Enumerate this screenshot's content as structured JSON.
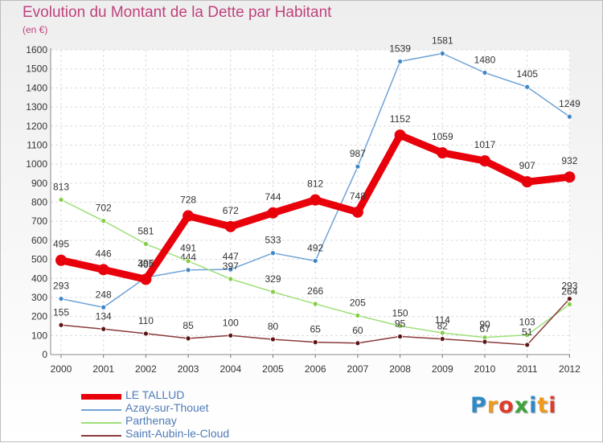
{
  "chart_data": {
    "type": "line",
    "title": "Evolution du Montant de la Dette par Habitant",
    "subtitle": "(en €)",
    "categories": [
      "2000",
      "2001",
      "2002",
      "2003",
      "2004",
      "2005",
      "2006",
      "2007",
      "2008",
      "2009",
      "2010",
      "2011",
      "2012"
    ],
    "ylim": [
      0,
      1600
    ],
    "yticks": [
      0,
      100,
      200,
      300,
      400,
      500,
      600,
      700,
      800,
      900,
      1000,
      1100,
      1200,
      1300,
      1400,
      1500,
      1600
    ],
    "grid": true,
    "legend_position": "bottom-left",
    "series": [
      {
        "name": "LE TALLUD",
        "color": "#e8000b",
        "emphasis": true,
        "values": [
          495,
          446,
          395,
          728,
          672,
          744,
          812,
          748,
          1152,
          1059,
          1017,
          907,
          932
        ]
      },
      {
        "name": "Azay-sur-Thouet",
        "color": "#6fa3d5",
        "point_color": "#3f86c8",
        "values": [
          293,
          248,
          405,
          444,
          447,
          533,
          492,
          987,
          1539,
          1581,
          1480,
          1405,
          1249
        ]
      },
      {
        "name": "Parthenay",
        "color": "#9fe07a",
        "point_color": "#86cc46",
        "values": [
          813,
          702,
          581,
          491,
          397,
          329,
          266,
          205,
          150,
          114,
          90,
          103,
          264
        ]
      },
      {
        "name": "Saint-Aubin-le-Cloud",
        "color": "#8b3a3a",
        "point_color": "#5e1414",
        "values": [
          155,
          134,
          110,
          85,
          100,
          80,
          65,
          60,
          95,
          82,
          67,
          51,
          293
        ]
      }
    ]
  },
  "logo": {
    "text": [
      "P",
      "r",
      "o",
      "x",
      "i",
      "t",
      "i"
    ]
  }
}
